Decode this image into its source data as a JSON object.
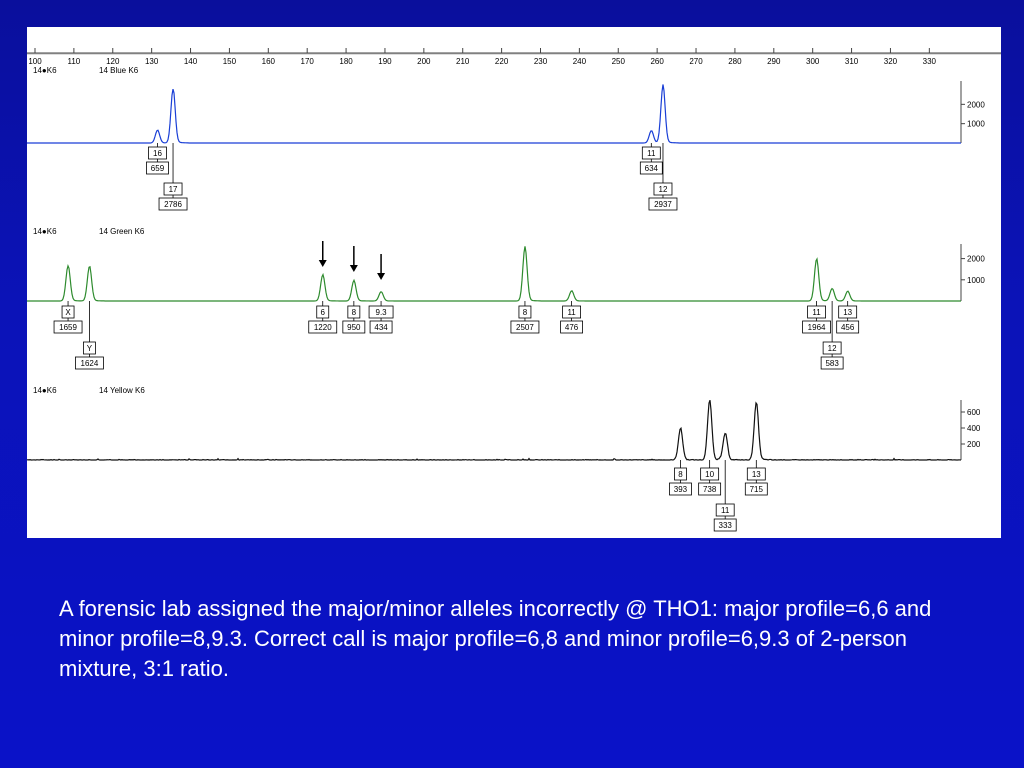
{
  "caption": "A forensic lab assigned the major/minor alleles incorrectly @ THO1: major profile=6,6 and minor profile=8,9.3. Correct call is major profile=6,8 and minor profile=6,9.3 of 2-person mixture, 3:1 ratio.",
  "chart_data": {
    "type": "line",
    "x_ticks": [
      100,
      110,
      120,
      130,
      140,
      150,
      160,
      170,
      180,
      190,
      200,
      210,
      220,
      230,
      240,
      250,
      260,
      270,
      280,
      290,
      300,
      310,
      320,
      330
    ],
    "panels": [
      {
        "name": "blue",
        "label_left": "14●K6",
        "label_title": "14 Blue  K6",
        "color": "#1a3fd6",
        "ylim": [
          0,
          3000
        ],
        "y_ticks": [
          1000,
          2000
        ],
        "peaks": [
          {
            "x": 131.5,
            "h": 659,
            "allele": "16",
            "height": "659",
            "row": 0
          },
          {
            "x": 135.5,
            "h": 2786,
            "allele": "17",
            "height": "2786",
            "row": 1
          },
          {
            "x": 258.5,
            "h": 634,
            "allele": "11",
            "height": "634",
            "row": 0
          },
          {
            "x": 261.5,
            "h": 2937,
            "allele": "12",
            "height": "2937",
            "row": 1
          }
        ],
        "arrows": []
      },
      {
        "name": "green",
        "label_left": "14●K6",
        "label_title": "14 Green  K6",
        "color": "#2e8b2e",
        "ylim": [
          0,
          2500
        ],
        "y_ticks": [
          1000,
          2000
        ],
        "peaks": [
          {
            "x": 108.5,
            "h": 1659,
            "allele": "X",
            "height": "1659",
            "row": 0
          },
          {
            "x": 114,
            "h": 1624,
            "allele": "Y",
            "height": "1624",
            "row": 1
          },
          {
            "x": 174,
            "h": 1220,
            "allele": "6",
            "height": "1220",
            "row": 0
          },
          {
            "x": 182,
            "h": 950,
            "allele": "8",
            "height": "950",
            "row": 0
          },
          {
            "x": 189,
            "h": 434,
            "allele": "9.3",
            "height": "434",
            "row": 0
          },
          {
            "x": 226,
            "h": 2507,
            "allele": "8",
            "height": "2507",
            "row": 0
          },
          {
            "x": 238,
            "h": 476,
            "allele": "11",
            "height": "476",
            "row": 0
          },
          {
            "x": 301,
            "h": 1964,
            "allele": "11",
            "height": "1964",
            "row": 0
          },
          {
            "x": 305,
            "h": 583,
            "allele": "12",
            "height": "583",
            "row": 1
          },
          {
            "x": 309,
            "h": 456,
            "allele": "13",
            "height": "456",
            "row": 0
          }
        ],
        "arrows": [
          174,
          182,
          189
        ]
      },
      {
        "name": "yellow",
        "label_left": "14●K6",
        "label_title": "14 Yellow  K6",
        "color": "#111111",
        "ylim": [
          0,
          700
        ],
        "y_ticks": [
          200,
          400,
          600
        ],
        "peaks": [
          {
            "x": 266,
            "h": 393,
            "allele": "8",
            "height": "393",
            "row": 0
          },
          {
            "x": 273.5,
            "h": 738,
            "allele": "10",
            "height": "738",
            "row": 0
          },
          {
            "x": 277.5,
            "h": 333,
            "allele": "11",
            "height": "333",
            "row": 1
          },
          {
            "x": 285.5,
            "h": 715,
            "allele": "13",
            "height": "715",
            "row": 0
          }
        ],
        "arrows": []
      }
    ]
  }
}
